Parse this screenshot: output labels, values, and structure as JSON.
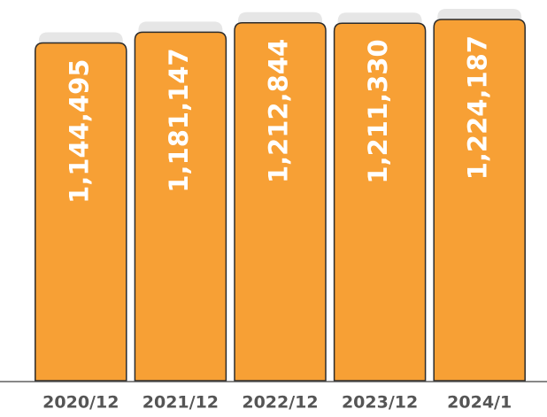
{
  "chart_data": {
    "type": "bar",
    "categories": [
      "2020/12",
      "2021/12",
      "2022/12",
      "2023/12",
      "2024/1"
    ],
    "values": [
      1144495,
      1181147,
      1212844,
      1211330,
      1224187
    ],
    "value_labels": [
      "1,144,495",
      "1,181,147",
      "1,212,844",
      "1,211,330",
      "1,224,187"
    ],
    "color": "#f7a035"
  }
}
